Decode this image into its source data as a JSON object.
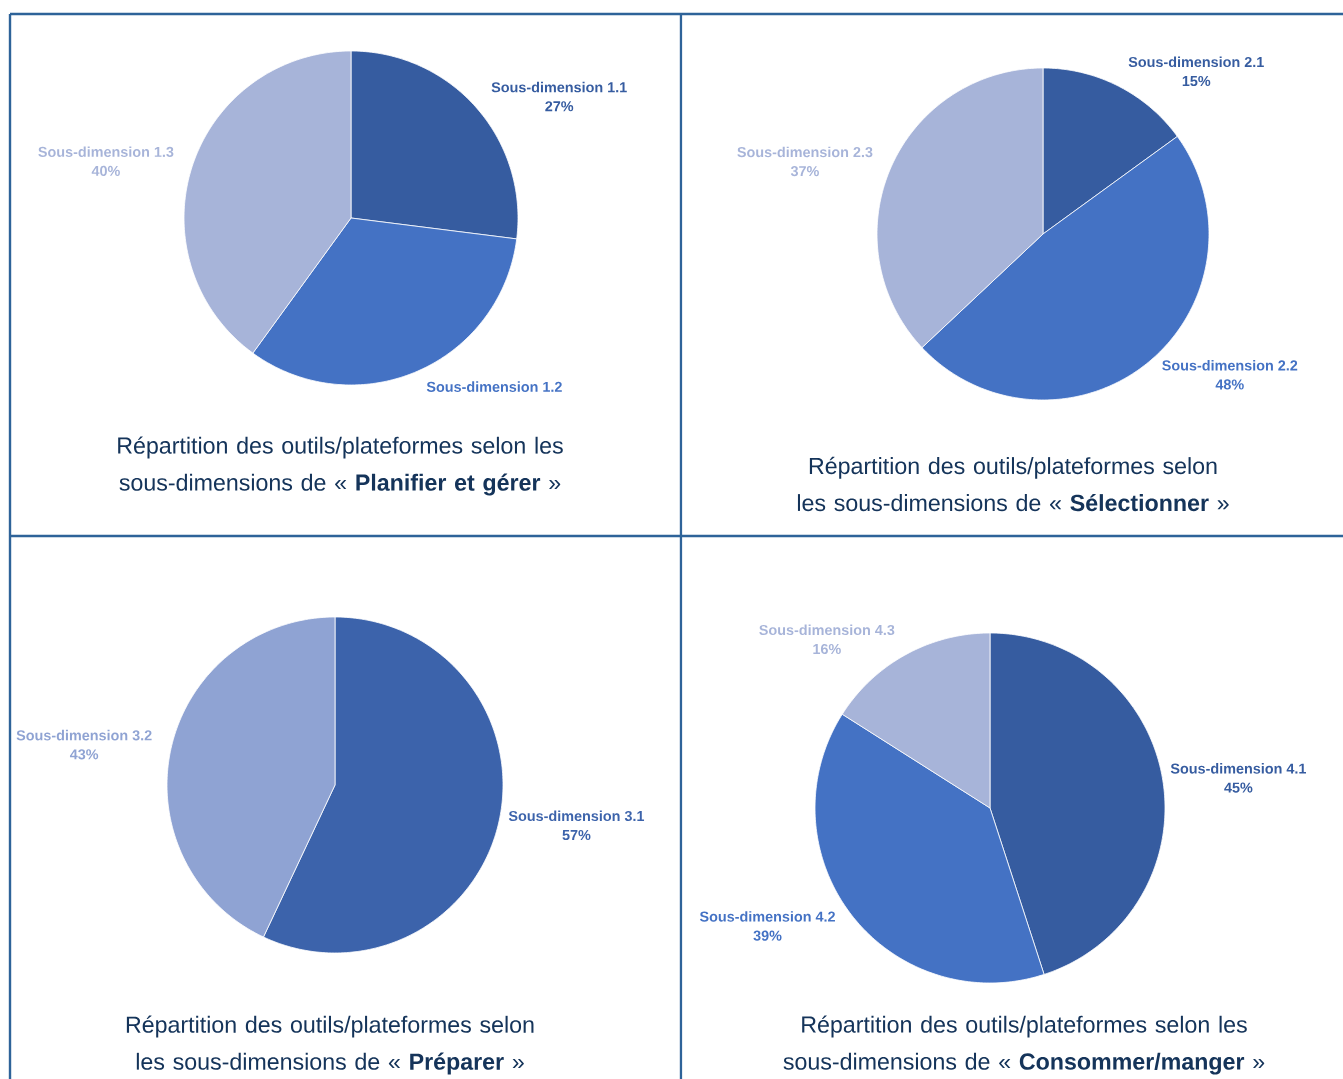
{
  "chart_data": [
    {
      "type": "pie",
      "title": "Répartition des outils/plateformes selon les sous-dimensions de « **Planifier et gérer** »",
      "categories": [
        "Sous-dimension 1.1",
        "Sous-dimension 1.2",
        "Sous-dimension 1.3"
      ],
      "values": [
        27,
        33,
        40
      ],
      "value_labels": [
        "27%",
        null,
        "40%"
      ],
      "colors": [
        "#365ca0",
        "#4472c4",
        "#a7b4d9"
      ]
    },
    {
      "type": "pie",
      "title": "Répartition des outils/plateformes selon les sous-dimensions de « **Sélectionner** »",
      "categories": [
        "Sous-dimension 2.1",
        "Sous-dimension 2.2",
        "Sous-dimension 2.3"
      ],
      "values": [
        15,
        48,
        37
      ],
      "value_labels": [
        "15%",
        "48%",
        "37%"
      ],
      "colors": [
        "#365ca0",
        "#4472c4",
        "#a7b4d9"
      ]
    },
    {
      "type": "pie",
      "title": "Répartition des outils/plateformes selon les sous-dimensions de « **Préparer** »",
      "categories": [
        "Sous-dimension 3.1",
        "Sous-dimension 3.2"
      ],
      "values": [
        57,
        43
      ],
      "value_labels": [
        "57%",
        "43%"
      ],
      "colors": [
        "#3c63ab",
        "#8fa3d3"
      ]
    },
    {
      "type": "pie",
      "title": "Répartition des outils/plateformes selon les sous-dimensions de « **Consommer/manger** »",
      "categories": [
        "Sous-dimension 4.1",
        "Sous-dimension 4.2",
        "Sous-dimension 4.3"
      ],
      "values": [
        45,
        39,
        16
      ],
      "value_labels": [
        "45%",
        "39%",
        "16%"
      ],
      "colors": [
        "#365ca0",
        "#4472c4",
        "#a7b4d9"
      ]
    }
  ]
}
